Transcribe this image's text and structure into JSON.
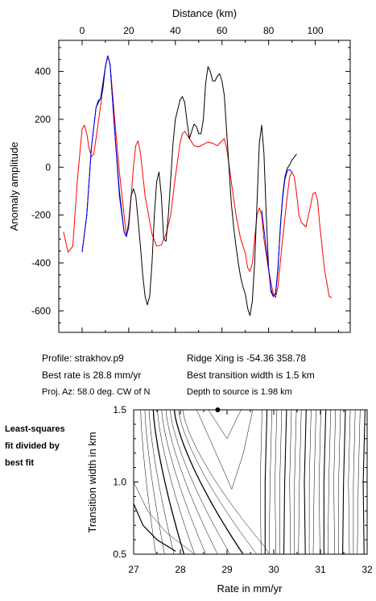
{
  "chart_data": [
    {
      "type": "line",
      "x_label": "Distance (km)",
      "y_label": "Anomaly amplitude",
      "xlim": [
        -10,
        115
      ],
      "ylim": [
        -690,
        530
      ],
      "x_ticks": [
        0,
        20,
        40,
        60,
        80,
        100
      ],
      "y_ticks": [
        400,
        200,
        0,
        -200,
        -400,
        -600
      ],
      "grid": false,
      "series": [
        {
          "color": "#ff0000",
          "points": [
            [
              -8,
              -270
            ],
            [
              -6,
              -355
            ],
            [
              -4,
              -330
            ],
            [
              -2,
              -50
            ],
            [
              0,
              160
            ],
            [
              1,
              175
            ],
            [
              2,
              140
            ],
            [
              3,
              80
            ],
            [
              4,
              45
            ],
            [
              5,
              55
            ],
            [
              6,
              120
            ],
            [
              8,
              260
            ],
            [
              10,
              420
            ],
            [
              11,
              465
            ],
            [
              12,
              430
            ],
            [
              14,
              200
            ],
            [
              16,
              -20
            ],
            [
              18,
              -200
            ],
            [
              19,
              -285
            ],
            [
              20,
              -250
            ],
            [
              22,
              0
            ],
            [
              23,
              90
            ],
            [
              24,
              110
            ],
            [
              25,
              60
            ],
            [
              27,
              -120
            ],
            [
              30,
              -280
            ],
            [
              32,
              -330
            ],
            [
              34,
              -325
            ],
            [
              36,
              -280
            ],
            [
              38,
              -200
            ],
            [
              40,
              -40
            ],
            [
              42,
              100
            ],
            [
              43,
              140
            ],
            [
              44,
              150
            ],
            [
              46,
              120
            ],
            [
              48,
              90
            ],
            [
              50,
              85
            ],
            [
              52,
              95
            ],
            [
              54,
              105
            ],
            [
              56,
              100
            ],
            [
              58,
              90
            ],
            [
              60,
              110
            ],
            [
              61,
              120
            ],
            [
              62,
              80
            ],
            [
              64,
              -60
            ],
            [
              66,
              -200
            ],
            [
              68,
              -300
            ],
            [
              70,
              -360
            ],
            [
              71,
              -420
            ],
            [
              72,
              -435
            ],
            [
              73,
              -400
            ],
            [
              74,
              -300
            ],
            [
              75,
              -200
            ],
            [
              76,
              -170
            ],
            [
              77,
              -200
            ],
            [
              78,
              -300
            ],
            [
              80,
              -430
            ],
            [
              82,
              -530
            ],
            [
              83,
              -545
            ],
            [
              84,
              -500
            ],
            [
              86,
              -300
            ],
            [
              88,
              -120
            ],
            [
              89,
              -40
            ],
            [
              90,
              -20
            ],
            [
              91,
              -40
            ],
            [
              92,
              -110
            ],
            [
              93,
              -200
            ],
            [
              94,
              -230
            ],
            [
              96,
              -250
            ],
            [
              98,
              -160
            ],
            [
              99,
              -110
            ],
            [
              100,
              -105
            ],
            [
              101,
              -140
            ],
            [
              102,
              -250
            ],
            [
              104,
              -430
            ],
            [
              106,
              -540
            ],
            [
              107,
              -545
            ]
          ]
        },
        {
          "color": "#000000",
          "points": [
            [
              0,
              -355
            ],
            [
              2,
              -200
            ],
            [
              4,
              80
            ],
            [
              6,
              250
            ],
            [
              8,
              290
            ],
            [
              10,
              420
            ],
            [
              11,
              465
            ],
            [
              12,
              430
            ],
            [
              14,
              150
            ],
            [
              16,
              -100
            ],
            [
              18,
              -270
            ],
            [
              19,
              -290
            ],
            [
              20,
              -230
            ],
            [
              21,
              -120
            ],
            [
              22,
              -90
            ],
            [
              23,
              -120
            ],
            [
              24,
              -220
            ],
            [
              25,
              -330
            ],
            [
              26,
              -450
            ],
            [
              27,
              -540
            ],
            [
              28,
              -575
            ],
            [
              29,
              -540
            ],
            [
              30,
              -400
            ],
            [
              31,
              -200
            ],
            [
              32,
              -60
            ],
            [
              33,
              -20
            ],
            [
              34,
              -120
            ],
            [
              35,
              -300
            ],
            [
              36,
              -310
            ],
            [
              37,
              -200
            ],
            [
              38,
              -50
            ],
            [
              39,
              100
            ],
            [
              40,
              200
            ],
            [
              42,
              280
            ],
            [
              43,
              295
            ],
            [
              44,
              270
            ],
            [
              45,
              190
            ],
            [
              46,
              120
            ],
            [
              47,
              150
            ],
            [
              48,
              180
            ],
            [
              49,
              170
            ],
            [
              50,
              140
            ],
            [
              51,
              140
            ],
            [
              52,
              200
            ],
            [
              53,
              350
            ],
            [
              54,
              420
            ],
            [
              55,
              400
            ],
            [
              56,
              360
            ],
            [
              57,
              360
            ],
            [
              58,
              380
            ],
            [
              59,
              390
            ],
            [
              60,
              360
            ],
            [
              61,
              300
            ],
            [
              62,
              150
            ],
            [
              63,
              0
            ],
            [
              64,
              -150
            ],
            [
              65,
              -250
            ],
            [
              66,
              -330
            ],
            [
              67,
              -400
            ],
            [
              68,
              -460
            ],
            [
              69,
              -500
            ],
            [
              70,
              -530
            ],
            [
              71,
              -590
            ],
            [
              72,
              -620
            ],
            [
              73,
              -560
            ],
            [
              74,
              -400
            ],
            [
              75,
              -150
            ],
            [
              76,
              100
            ],
            [
              77,
              175
            ],
            [
              78,
              60
            ],
            [
              79,
              -200
            ],
            [
              80,
              -420
            ],
            [
              81,
              -520
            ],
            [
              82,
              -540
            ],
            [
              83,
              -530
            ],
            [
              84,
              -430
            ],
            [
              85,
              -250
            ],
            [
              86,
              -120
            ],
            [
              87,
              -40
            ],
            [
              88,
              -5
            ],
            [
              89,
              10
            ],
            [
              90,
              30
            ],
            [
              92,
              55
            ]
          ]
        },
        {
          "color": "#0000ff",
          "points": [
            [
              0,
              -355
            ],
            [
              2,
              -200
            ],
            [
              4,
              80
            ],
            [
              6,
              250
            ],
            [
              7,
              280
            ],
            [
              8,
              285
            ],
            [
              9,
              330
            ],
            [
              10,
              420
            ],
            [
              11,
              465
            ],
            [
              12,
              430
            ],
            [
              14,
              150
            ],
            [
              16,
              -120
            ],
            [
              18,
              -270
            ],
            [
              19,
              -290
            ],
            [
              20,
              -250
            ]
          ]
        },
        {
          "color": "#0000ff",
          "points": [
            [
              77,
              -180
            ],
            [
              79,
              -340
            ],
            [
              81,
              -510
            ],
            [
              82,
              -540
            ],
            [
              83,
              -525
            ],
            [
              84,
              -420
            ],
            [
              85,
              -260
            ],
            [
              86,
              -130
            ],
            [
              87,
              -50
            ],
            [
              88,
              -15
            ],
            [
              89,
              -10
            ],
            [
              90,
              -20
            ]
          ]
        }
      ]
    },
    {
      "type": "contour",
      "x_label": "Rate in mm/yr",
      "y_label": "Transition width in km",
      "xlim": [
        27,
        32
      ],
      "ylim": [
        0.5,
        1.5
      ],
      "x_ticks": [
        27,
        28,
        29,
        30,
        31,
        32
      ],
      "y_ticks": [
        0.5,
        1.0,
        1.5
      ],
      "best_fit_marker": {
        "rate": 28.8,
        "width": 1.5
      }
    }
  ],
  "info": {
    "profile": "Profile: strakhov.p9",
    "best_rate": "Best rate is 28.8 mm/yr",
    "proj_az": "Proj. Az: 58.0 deg. CW of N",
    "ridge_xing": "Ridge Xing is -54.36 358.78",
    "best_transition": "Best transition width is 1.5 km",
    "depth": "Depth to source is   1.98 km"
  },
  "side_note": [
    "Least-squares",
    "fit divided by",
    "best fit"
  ]
}
